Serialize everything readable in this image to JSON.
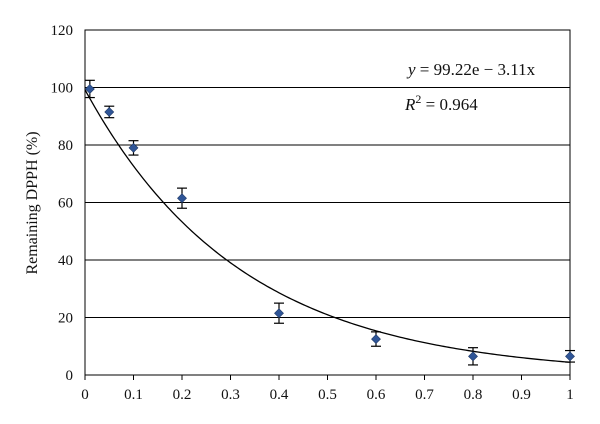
{
  "chart_data": {
    "type": "scatter",
    "title": "",
    "xlabel": "",
    "ylabel": "Remaining DPPH (%)",
    "xlim": [
      0,
      1
    ],
    "ylim": [
      0,
      120
    ],
    "x_ticks": [
      "0",
      "0.1",
      "0.2",
      "0.3",
      "0.4",
      "0.5",
      "0.6",
      "0.7",
      "0.8",
      "0.9",
      "1"
    ],
    "y_ticks": [
      "0",
      "20",
      "40",
      "60",
      "80",
      "100",
      "120"
    ],
    "grid": "horizontal",
    "series": [
      {
        "marker": "diamond",
        "color": "#2f5597",
        "x": [
          0.01,
          0.05,
          0.1,
          0.2,
          0.4,
          0.6,
          0.8,
          1.0
        ],
        "y": [
          99.5,
          91.5,
          79,
          61.5,
          21.5,
          12.5,
          6.5,
          6.5
        ],
        "error": [
          3,
          2,
          2.5,
          3.5,
          3.5,
          2.5,
          3,
          2
        ]
      }
    ],
    "fit": {
      "type": "exponential",
      "a": 99.22,
      "b": -3.11,
      "color": "#000000"
    },
    "annotations": {
      "equation_y": "y",
      "equation_rest": " = 99.22e − 3.11x",
      "r2_label": "R",
      "r2_sup": "2",
      "r2_rest": " = 0.964"
    }
  }
}
